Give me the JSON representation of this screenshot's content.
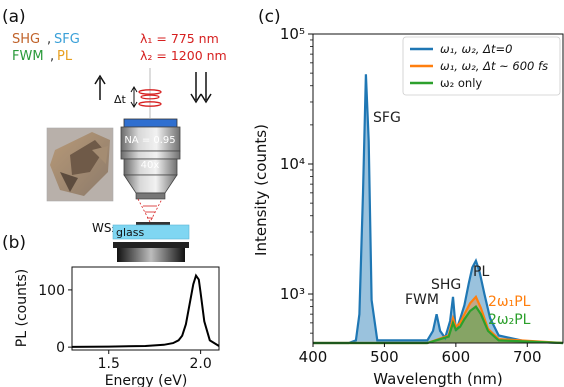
{
  "panel_a": {
    "label": "(a)",
    "process_1a": "SHG",
    "process_1b": "SFG",
    "process_2a": "FWM",
    "process_2b": "PL",
    "lambda1": "λ₁ =  775 nm",
    "lambda2": "λ₂ = 1200 nm",
    "delay": "Δt",
    "na": "NA = 0.95",
    "mag": "40x",
    "material": "WS₂",
    "substrate": "glass",
    "colors": {
      "shg": "#c0622a",
      "sfg": "#3aa0d8",
      "fwm": "#2a9a3a",
      "pl": "#e8a020",
      "lambda": "#d62020",
      "glass": "#7fd6f2"
    }
  },
  "panel_b": {
    "label": "(b)",
    "chart_data": {
      "type": "line",
      "xlabel": "Energy (eV)",
      "ylabel": "PL (counts)",
      "xlim": [
        1.3,
        2.1
      ],
      "ylim": [
        -5,
        140
      ],
      "xticks": [
        "1.5",
        "2.0"
      ],
      "yticks": [
        "0",
        "100"
      ],
      "series": [
        {
          "x": [
            1.3,
            1.5,
            1.7,
            1.8,
            1.85,
            1.88,
            1.9,
            1.92,
            1.94,
            1.96,
            1.975,
            1.99,
            2.0,
            2.02,
            2.05,
            2.1
          ],
          "values": [
            0.5,
            1,
            2,
            4,
            7,
            12,
            20,
            40,
            75,
            110,
            125,
            118,
            95,
            45,
            12,
            2
          ]
        }
      ]
    }
  },
  "panel_c": {
    "label": "(c)",
    "chart_data": {
      "type": "area",
      "xlabel": "Wavelength (nm)",
      "ylabel": "Intensity (counts)",
      "xlim": [
        400,
        750
      ],
      "ylim": [
        420,
        100000
      ],
      "yscale": "log",
      "xticks": [
        "400",
        "500",
        "600",
        "700"
      ],
      "yticks": [
        "10³",
        "10⁴",
        "10⁵"
      ],
      "legend_position": "top-right",
      "series": [
        {
          "name": "ω₁, ω₂, Δt=0",
          "color": "#1f77b4",
          "x": [
            400,
            450,
            460,
            465,
            470,
            474,
            478,
            482,
            490,
            560,
            568,
            573,
            578,
            585,
            592,
            596,
            600,
            606,
            612,
            618,
            623,
            628,
            633,
            640,
            648,
            660,
            700,
            750
          ],
          "values": [
            420,
            420,
            440,
            700,
            6000,
            49000,
            15000,
            900,
            440,
            440,
            520,
            700,
            520,
            460,
            620,
            950,
            520,
            640,
            820,
            1200,
            1600,
            1800,
            1500,
            1000,
            650,
            480,
            430,
            420
          ]
        },
        {
          "name": "ω₁, ω₂, Δt ~ 600 fs",
          "color": "#ff7f0e",
          "x": [
            400,
            560,
            590,
            596,
            600,
            606,
            612,
            620,
            628,
            635,
            645,
            660,
            750
          ],
          "values": [
            420,
            420,
            480,
            650,
            560,
            600,
            700,
            850,
            950,
            780,
            540,
            450,
            420
          ]
        },
        {
          "name": "ω₂ only",
          "color": "#2ca02c",
          "x": [
            400,
            560,
            590,
            596,
            600,
            606,
            612,
            620,
            628,
            635,
            645,
            660,
            750
          ],
          "values": [
            420,
            420,
            470,
            600,
            530,
            560,
            640,
            740,
            800,
            700,
            520,
            440,
            420
          ]
        }
      ],
      "annotations": [
        {
          "text": "SFG",
          "color": "#222222"
        },
        {
          "text": "SHG",
          "color": "#222222"
        },
        {
          "text": "FWM",
          "color": "#222222"
        },
        {
          "text": "PL",
          "color": "#222222"
        },
        {
          "text": "2ω₁PL",
          "color": "#ff7f0e"
        },
        {
          "text": "2ω₂PL",
          "color": "#2ca02c"
        }
      ]
    }
  }
}
